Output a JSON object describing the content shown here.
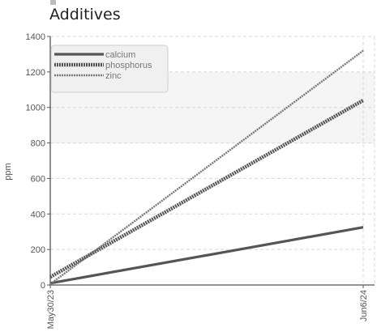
{
  "chart_data": {
    "type": "line",
    "title": "Additives",
    "xlabel": "",
    "ylabel": "ppm",
    "x": [
      "May30/23",
      "Jun6/24"
    ],
    "ylim": [
      0,
      1400
    ],
    "yticks": [
      0,
      200,
      400,
      600,
      800,
      1000,
      1200,
      1400
    ],
    "grid": true,
    "legend_position": "top-left",
    "series": [
      {
        "name": "calcium",
        "values": [
          10,
          325
        ],
        "color": "#555555",
        "style": "solid"
      },
      {
        "name": "phosphorus",
        "values": [
          45,
          1040
        ],
        "color": "#555555",
        "style": "dotted-thick"
      },
      {
        "name": "zinc",
        "values": [
          5,
          1320
        ],
        "color": "#777777",
        "style": "dotted-thin"
      }
    ]
  }
}
